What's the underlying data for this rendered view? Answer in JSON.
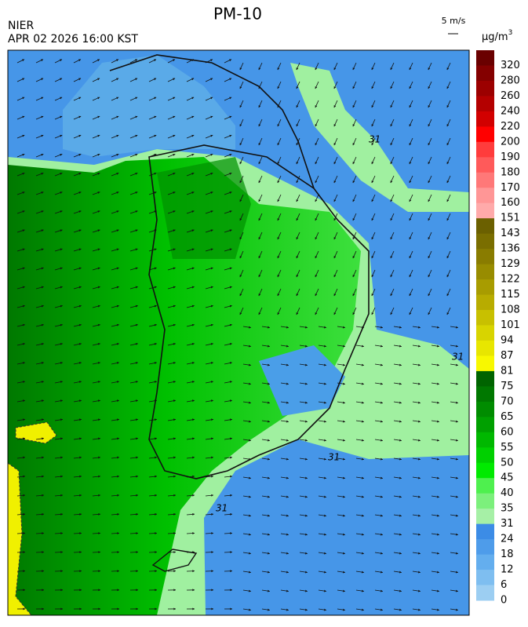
{
  "header": {
    "title": "PM-10",
    "agency": "NIER",
    "timestamp": "APR 02 2026 16:00 KST",
    "wind_scale": "5 m/s",
    "unit": "μg/m",
    "unit_exponent": "3"
  },
  "contour_labels": [
    "31",
    "31",
    "31",
    "31"
  ],
  "colorbar": {
    "levels": [
      {
        "label": 320,
        "color": "#6a0000"
      },
      {
        "label": 280,
        "color": "#840000"
      },
      {
        "label": 260,
        "color": "#9c0000"
      },
      {
        "label": 240,
        "color": "#b40000"
      },
      {
        "label": 220,
        "color": "#d20000"
      },
      {
        "label": 200,
        "color": "#ff0000"
      },
      {
        "label": 190,
        "color": "#ff3c3c"
      },
      {
        "label": 180,
        "color": "#ff5a5a"
      },
      {
        "label": 170,
        "color": "#ff7878"
      },
      {
        "label": 160,
        "color": "#ff9696"
      },
      {
        "label": 151,
        "color": "#ffaaaa"
      },
      {
        "label": 143,
        "color": "#6b6000"
      },
      {
        "label": 136,
        "color": "#7a6e00"
      },
      {
        "label": 129,
        "color": "#897c00"
      },
      {
        "label": 122,
        "color": "#988c00"
      },
      {
        "label": 115,
        "color": "#a89c00"
      },
      {
        "label": 108,
        "color": "#b8ac00"
      },
      {
        "label": 101,
        "color": "#c8c000"
      },
      {
        "label": 94,
        "color": "#d8d400"
      },
      {
        "label": 87,
        "color": "#e8e600"
      },
      {
        "label": 81,
        "color": "#f8f800"
      },
      {
        "label": 75,
        "color": "#006400"
      },
      {
        "label": 70,
        "color": "#007800"
      },
      {
        "label": 65,
        "color": "#008c00"
      },
      {
        "label": 60,
        "color": "#00a000"
      },
      {
        "label": 55,
        "color": "#00b800"
      },
      {
        "label": 50,
        "color": "#00d000"
      },
      {
        "label": 45,
        "color": "#00ea00"
      },
      {
        "label": 40,
        "color": "#4ef04e"
      },
      {
        "label": 35,
        "color": "#7cf07c"
      },
      {
        "label": 31,
        "color": "#a6f0a6"
      },
      {
        "label": 24,
        "color": "#3c8ce6"
      },
      {
        "label": 18,
        "color": "#4e9cea"
      },
      {
        "label": 12,
        "color": "#64aeee"
      },
      {
        "label": 6,
        "color": "#7ebef0"
      },
      {
        "label": 0,
        "color": "#9ccef2"
      }
    ]
  }
}
